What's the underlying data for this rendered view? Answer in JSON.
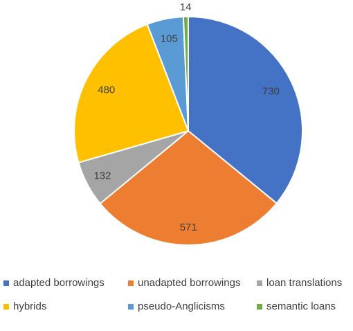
{
  "chart_data": {
    "type": "pie",
    "title": "",
    "categories": [
      "adapted borrowings",
      "unadapted borrowings",
      "loan translations",
      "hybrids",
      "pseudo-Anglicisms",
      "semantic loans"
    ],
    "values": [
      730,
      571,
      132,
      480,
      105,
      14
    ],
    "colors": [
      "#4472C4",
      "#ED7D31",
      "#A5A5A5",
      "#FFC000",
      "#5B9BD5",
      "#70AD47"
    ],
    "start_angle_deg": 0,
    "direction": "clockwise",
    "data_labels": [
      "730",
      "571",
      "132",
      "480",
      "105",
      "14"
    ],
    "legend": {
      "placement": "bottom",
      "rows": [
        [
          "adapted borrowings",
          "unadapted borrowings",
          "loan translations"
        ],
        [
          "hybrids",
          "pseudo-Anglicisms",
          "semantic loans"
        ]
      ]
    }
  }
}
